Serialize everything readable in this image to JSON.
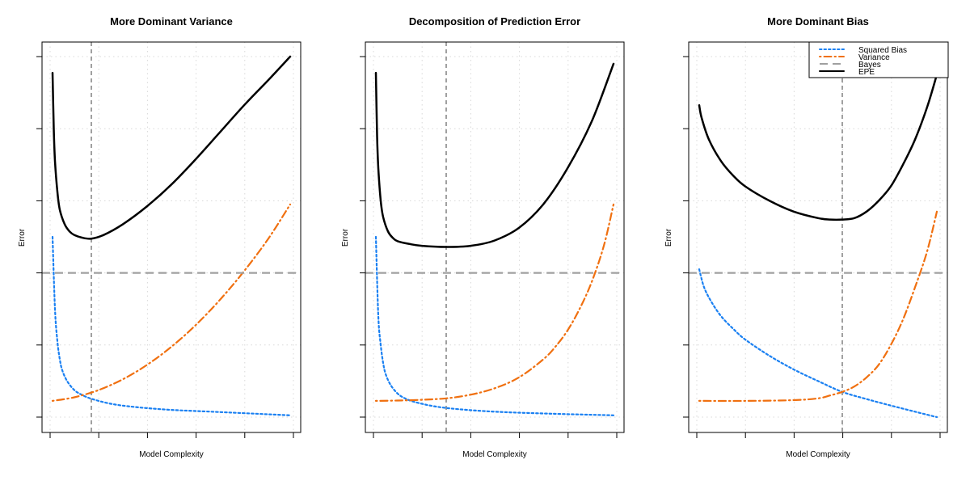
{
  "chart_data": [
    {
      "type": "line",
      "title": "More Dominant Variance",
      "xlabel": "Model Complexity",
      "ylabel": "Error",
      "xlim": [
        0,
        1
      ],
      "ylim": [
        0,
        1
      ],
      "grid": true,
      "optimum_x": 0.17,
      "series": [
        {
          "name": "Squared Bias",
          "style": "dotted",
          "x": [
            0.01,
            0.02,
            0.03,
            0.04,
            0.05,
            0.07,
            0.1,
            0.13,
            0.17,
            0.25,
            0.35,
            0.5,
            0.7,
            0.99
          ],
          "y": [
            0.5,
            0.3,
            0.21,
            0.16,
            0.13,
            0.1,
            0.075,
            0.062,
            0.051,
            0.037,
            0.028,
            0.02,
            0.014,
            0.005
          ]
        },
        {
          "name": "Variance",
          "style": "dotdash",
          "x": [
            0.01,
            0.1,
            0.2,
            0.3,
            0.4,
            0.5,
            0.6,
            0.7,
            0.8,
            0.9,
            0.99
          ],
          "y": [
            0.045,
            0.055,
            0.075,
            0.105,
            0.145,
            0.195,
            0.255,
            0.325,
            0.405,
            0.495,
            0.59
          ]
        },
        {
          "name": "Bayes",
          "style": "dashed",
          "x": [
            0,
            1
          ],
          "y": [
            0.4,
            0.4
          ]
        },
        {
          "name": "EPE",
          "style": "solid",
          "x": [
            0.01,
            0.015,
            0.02,
            0.03,
            0.04,
            0.06,
            0.08,
            0.1,
            0.13,
            0.17,
            0.22,
            0.3,
            0.4,
            0.5,
            0.6,
            0.7,
            0.8,
            0.9,
            0.99
          ],
          "y": [
            0.955,
            0.8,
            0.71,
            0.625,
            0.575,
            0.535,
            0.515,
            0.505,
            0.498,
            0.495,
            0.505,
            0.535,
            0.585,
            0.645,
            0.715,
            0.79,
            0.865,
            0.935,
            1.0
          ]
        }
      ]
    },
    {
      "type": "line",
      "title": "Decomposition of Prediction Error",
      "xlabel": "Model Complexity",
      "ylabel": "Error",
      "xlim": [
        0,
        1
      ],
      "ylim": [
        0,
        1
      ],
      "grid": true,
      "optimum_x": 0.3,
      "series": [
        {
          "name": "Squared Bias",
          "style": "dotted",
          "x": [
            0.01,
            0.02,
            0.03,
            0.04,
            0.05,
            0.07,
            0.1,
            0.13,
            0.17,
            0.25,
            0.35,
            0.5,
            0.7,
            0.99
          ],
          "y": [
            0.5,
            0.28,
            0.2,
            0.15,
            0.12,
            0.09,
            0.065,
            0.052,
            0.042,
            0.03,
            0.022,
            0.015,
            0.01,
            0.005
          ]
        },
        {
          "name": "Variance",
          "style": "dotdash",
          "x": [
            0.01,
            0.1,
            0.2,
            0.3,
            0.4,
            0.5,
            0.6,
            0.7,
            0.75,
            0.8,
            0.85,
            0.9,
            0.95,
            0.99
          ],
          "y": [
            0.045,
            0.046,
            0.048,
            0.052,
            0.062,
            0.08,
            0.11,
            0.16,
            0.195,
            0.24,
            0.3,
            0.375,
            0.475,
            0.59
          ]
        },
        {
          "name": "Bayes",
          "style": "dashed",
          "x": [
            0,
            1
          ],
          "y": [
            0.4,
            0.4
          ]
        },
        {
          "name": "EPE",
          "style": "solid",
          "x": [
            0.01,
            0.015,
            0.02,
            0.03,
            0.04,
            0.06,
            0.08,
            0.1,
            0.15,
            0.2,
            0.3,
            0.4,
            0.5,
            0.6,
            0.7,
            0.8,
            0.9,
            0.99
          ],
          "y": [
            0.955,
            0.78,
            0.69,
            0.6,
            0.555,
            0.515,
            0.497,
            0.488,
            0.48,
            0.475,
            0.472,
            0.475,
            0.49,
            0.525,
            0.59,
            0.69,
            0.82,
            0.98
          ]
        }
      ]
    },
    {
      "type": "line",
      "title": "More Dominant Bias",
      "xlabel": "Model Complexity",
      "ylabel": "Error",
      "xlim": [
        0,
        1
      ],
      "ylim": [
        0,
        1
      ],
      "grid": true,
      "optimum_x": 0.6,
      "legend_position": "top-right",
      "series": [
        {
          "name": "Squared Bias",
          "style": "dotted",
          "x": [
            0.01,
            0.03,
            0.06,
            0.1,
            0.15,
            0.2,
            0.3,
            0.4,
            0.5,
            0.6,
            0.7,
            0.8,
            0.9,
            0.99
          ],
          "y": [
            0.41,
            0.36,
            0.32,
            0.28,
            0.245,
            0.215,
            0.17,
            0.132,
            0.1,
            0.07,
            0.05,
            0.032,
            0.015,
            0.0
          ]
        },
        {
          "name": "Variance",
          "style": "dotdash",
          "x": [
            0.01,
            0.2,
            0.4,
            0.5,
            0.55,
            0.6,
            0.65,
            0.7,
            0.75,
            0.8,
            0.85,
            0.9,
            0.95,
            0.99
          ],
          "y": [
            0.045,
            0.045,
            0.047,
            0.052,
            0.06,
            0.07,
            0.085,
            0.11,
            0.145,
            0.2,
            0.27,
            0.36,
            0.46,
            0.57
          ]
        },
        {
          "name": "Bayes",
          "style": "dashed",
          "x": [
            0,
            1
          ],
          "y": [
            0.4,
            0.4
          ]
        },
        {
          "name": "EPE",
          "style": "solid",
          "x": [
            0.01,
            0.02,
            0.05,
            0.1,
            0.15,
            0.2,
            0.3,
            0.4,
            0.5,
            0.55,
            0.6,
            0.65,
            0.7,
            0.75,
            0.8,
            0.85,
            0.9,
            0.95,
            0.99
          ],
          "y": [
            0.865,
            0.83,
            0.77,
            0.71,
            0.67,
            0.64,
            0.6,
            0.57,
            0.552,
            0.548,
            0.548,
            0.552,
            0.57,
            0.6,
            0.64,
            0.7,
            0.77,
            0.86,
            0.95
          ]
        }
      ]
    }
  ],
  "colors": {
    "Squared Bias": "#1a80f2",
    "Variance": "#f07010",
    "Bayes": "#a0a0a0",
    "EPE": "#000000",
    "optimum_line": "#a0a0a0",
    "grid": "#d8d8d8"
  }
}
